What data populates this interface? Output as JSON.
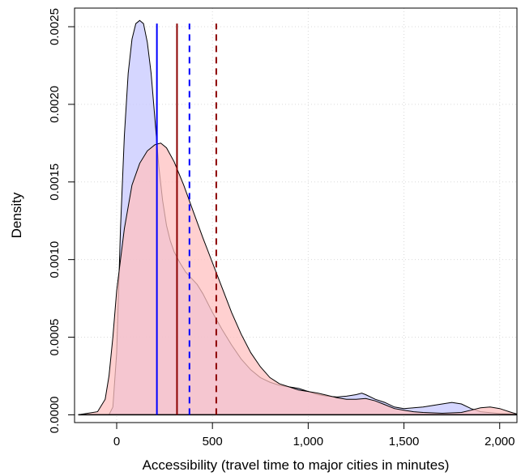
{
  "chart_data": {
    "type": "area",
    "xlabel": "Accessibility (travel time to major cities in minutes)",
    "ylabel": "Density",
    "xlim": [
      -220,
      2090
    ],
    "ylim": [
      -5e-05,
      0.00262
    ],
    "x_ticks": [
      0,
      500,
      1000,
      1500,
      2000
    ],
    "x_tick_labels": [
      "0",
      "500",
      "1,000",
      "1,500",
      "2,000"
    ],
    "y_ticks": [
      0,
      0.0005,
      0.001,
      0.0015,
      0.002,
      0.0025
    ],
    "y_tick_labels": [
      "0.0000",
      "0.0005",
      "0.0010",
      "0.0015",
      "0.0020",
      "0.0025"
    ],
    "grid": true,
    "series": [
      {
        "color": "#0000ff",
        "fill": "#c7c8ff",
        "points": [
          [
            -200,
            0
          ],
          [
            -40,
            0
          ],
          [
            -20,
            5e-05
          ],
          [
            0,
            0.0004
          ],
          [
            20,
            0.0012
          ],
          [
            40,
            0.0018
          ],
          [
            60,
            0.0022
          ],
          [
            80,
            0.00242
          ],
          [
            100,
            0.00252
          ],
          [
            120,
            0.00254
          ],
          [
            140,
            0.00252
          ],
          [
            160,
            0.0024
          ],
          [
            180,
            0.0022
          ],
          [
            200,
            0.0019
          ],
          [
            220,
            0.0016
          ],
          [
            240,
            0.00138
          ],
          [
            260,
            0.00122
          ],
          [
            280,
            0.00112
          ],
          [
            300,
            0.00105
          ],
          [
            330,
            0.00098
          ],
          [
            360,
            0.00092
          ],
          [
            390,
            0.00088
          ],
          [
            420,
            0.00084
          ],
          [
            450,
            0.00078
          ],
          [
            500,
            0.00066
          ],
          [
            550,
            0.00055
          ],
          [
            600,
            0.00045
          ],
          [
            650,
            0.00036
          ],
          [
            700,
            0.00029
          ],
          [
            750,
            0.00024
          ],
          [
            800,
            0.00021
          ],
          [
            850,
            0.00019
          ],
          [
            900,
            0.00018
          ],
          [
            950,
            0.00017
          ],
          [
            1000,
            0.00015
          ],
          [
            1050,
            0.00013
          ],
          [
            1100,
            0.00012
          ],
          [
            1150,
            0.000115
          ],
          [
            1200,
            0.00012
          ],
          [
            1250,
            0.00013
          ],
          [
            1280,
            0.00014
          ],
          [
            1300,
            0.00013
          ],
          [
            1350,
            0.0001
          ],
          [
            1400,
            8e-05
          ],
          [
            1450,
            5e-05
          ],
          [
            1500,
            4e-05
          ],
          [
            1550,
            4.5e-05
          ],
          [
            1600,
            5e-05
          ],
          [
            1650,
            6e-05
          ],
          [
            1700,
            7e-05
          ],
          [
            1750,
            8e-05
          ],
          [
            1800,
            7e-05
          ],
          [
            1850,
            4e-05
          ],
          [
            1900,
            2e-05
          ],
          [
            2000,
            8e-06
          ],
          [
            2090,
            5e-06
          ]
        ],
        "mean": 210,
        "mean_line": "solid",
        "median": 380,
        "median_line": "dashed"
      },
      {
        "color": "#8b0000",
        "fill": "#ffc0c0",
        "points": [
          [
            -200,
            0
          ],
          [
            -100,
            2e-05
          ],
          [
            -60,
            0.0001
          ],
          [
            -40,
            0.00025
          ],
          [
            -20,
            0.0005
          ],
          [
            0,
            0.0008
          ],
          [
            40,
            0.0012
          ],
          [
            80,
            0.00148
          ],
          [
            120,
            0.00162
          ],
          [
            160,
            0.0017
          ],
          [
            200,
            0.00174
          ],
          [
            230,
            0.00175
          ],
          [
            260,
            0.00172
          ],
          [
            300,
            0.00163
          ],
          [
            350,
            0.00148
          ],
          [
            400,
            0.00131
          ],
          [
            450,
            0.00114
          ],
          [
            500,
            0.00098
          ],
          [
            550,
            0.00082
          ],
          [
            600,
            0.00066
          ],
          [
            650,
            0.00052
          ],
          [
            700,
            0.0004
          ],
          [
            750,
            0.00031
          ],
          [
            800,
            0.00024
          ],
          [
            850,
            0.0002
          ],
          [
            900,
            0.00018
          ],
          [
            950,
            0.00016
          ],
          [
            1000,
            0.00015
          ],
          [
            1050,
            0.00014
          ],
          [
            1100,
            0.000125
          ],
          [
            1150,
            0.00011
          ],
          [
            1200,
            0.0001
          ],
          [
            1250,
            0.0001
          ],
          [
            1300,
            0.000105
          ],
          [
            1350,
            9e-05
          ],
          [
            1400,
            6.5e-05
          ],
          [
            1450,
            4e-05
          ],
          [
            1500,
            3e-05
          ],
          [
            1550,
            2e-05
          ],
          [
            1600,
            1.5e-05
          ],
          [
            1700,
            1e-05
          ],
          [
            1800,
            1.5e-05
          ],
          [
            1850,
            3e-05
          ],
          [
            1900,
            4.5e-05
          ],
          [
            1950,
            5e-05
          ],
          [
            2000,
            4e-05
          ],
          [
            2050,
            2e-05
          ],
          [
            2090,
            5e-06
          ]
        ],
        "mean": 315,
        "mean_line": "solid",
        "median": 520,
        "median_line": "dashed"
      }
    ]
  }
}
